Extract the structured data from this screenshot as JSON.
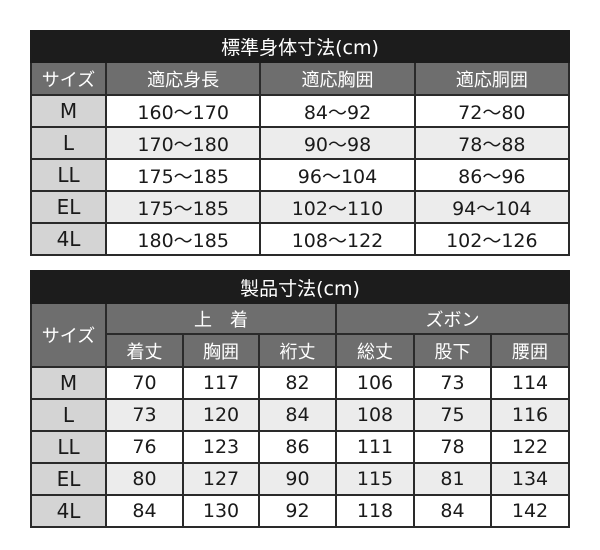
{
  "body_table": {
    "title": "標準身体寸法(cm)",
    "headers": [
      "サイズ",
      "適応身長",
      "適応胸囲",
      "適応胴囲"
    ],
    "rows": [
      [
        "M",
        "160〜170",
        "84〜92",
        "72〜80"
      ],
      [
        "L",
        "170〜180",
        "90〜98",
        "78〜88"
      ],
      [
        "LL",
        "175〜185",
        "96〜104",
        "86〜96"
      ],
      [
        "EL",
        "175〜185",
        "102〜110",
        "94〜104"
      ],
      [
        "4L",
        "180〜185",
        "108〜122",
        "102〜126"
      ]
    ]
  },
  "product_table": {
    "title": "製品寸法(cm)",
    "size_header": "サイズ",
    "groups": [
      "上　着",
      "ズボン"
    ],
    "headers": [
      "着丈",
      "胸囲",
      "裄丈",
      "総丈",
      "股下",
      "腰囲"
    ],
    "rows": [
      [
        "M",
        "70",
        "117",
        "82",
        "106",
        "73",
        "114"
      ],
      [
        "L",
        "73",
        "120",
        "84",
        "108",
        "75",
        "116"
      ],
      [
        "LL",
        "76",
        "123",
        "86",
        "111",
        "78",
        "122"
      ],
      [
        "EL",
        "80",
        "127",
        "90",
        "115",
        "81",
        "134"
      ],
      [
        "4L",
        "84",
        "130",
        "92",
        "118",
        "84",
        "142"
      ]
    ]
  },
  "colors": {
    "title_bg": "#1c1c1c",
    "header_bg": "#6e6e6e",
    "size_bg": "#d4d4d4",
    "alt_row_bg": "#ececec"
  }
}
